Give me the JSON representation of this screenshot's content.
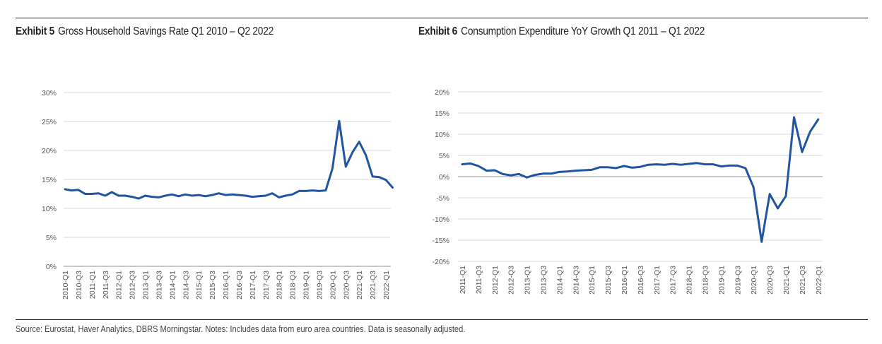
{
  "exhibit5": {
    "label": "Exhibit 5",
    "title": "Gross Household Savings Rate Q1 2010 – Q2 2022"
  },
  "exhibit6": {
    "label": "Exhibit 6",
    "title": "Consumption Expenditure YoY Growth Q1 2011 –  Q1 2022"
  },
  "footer": {
    "text": "Source: Eurostat, Haver Analytics, DBRS Morningstar. Notes: Includes data from euro area countries. Data is seasonally adjusted."
  },
  "colors": {
    "line": "#2155a0",
    "grid": "#d9d9d9",
    "zero_axis": "#a6a6a6"
  },
  "chart_data": [
    {
      "type": "line",
      "title": "Gross Household Savings Rate Q1 2010 – Q2 2022",
      "xlabel": "",
      "ylabel": "",
      "ylim": [
        0,
        30
      ],
      "yticks": [
        "0%",
        "5%",
        "10%",
        "15%",
        "20%",
        "25%",
        "30%"
      ],
      "ytick_values": [
        0,
        5,
        10,
        15,
        20,
        25,
        30
      ],
      "grid": true,
      "xtick_labels": [
        "2010-Q1",
        "2010-Q3",
        "2011-Q1",
        "2011-Q3",
        "2012-Q1",
        "2012-Q3",
        "2013-Q1",
        "2013-Q3",
        "2014-Q1",
        "2014-Q3",
        "2015-Q1",
        "2015-Q3",
        "2016-Q1",
        "2016-Q3",
        "2017-Q1",
        "2017-Q3",
        "2018-Q1",
        "2018-Q3",
        "2019-Q1",
        "2019-Q3",
        "2020-Q1",
        "2020-Q3",
        "2021-Q1",
        "2021-Q3",
        "2022-Q1"
      ],
      "x_start": "2010-Q1",
      "series": [
        {
          "name": "Gross Household Savings Rate",
          "values": [
            13.3,
            13.1,
            13.2,
            12.5,
            12.5,
            12.6,
            12.2,
            12.8,
            12.2,
            12.2,
            12.0,
            11.7,
            12.2,
            12.0,
            11.9,
            12.2,
            12.4,
            12.1,
            12.4,
            12.2,
            12.3,
            12.1,
            12.3,
            12.6,
            12.3,
            12.4,
            12.3,
            12.2,
            12.0,
            12.1,
            12.2,
            12.6,
            11.9,
            12.2,
            12.4,
            13.0,
            13.0,
            13.1,
            13.0,
            13.1,
            16.9,
            25.1,
            17.2,
            19.7,
            21.5,
            19.2,
            15.5,
            15.4,
            14.9,
            13.6
          ]
        }
      ]
    },
    {
      "type": "line",
      "title": "Consumption Expenditure YoY Growth Q1 2011 –  Q1 2022",
      "xlabel": "",
      "ylabel": "",
      "ylim": [
        -20,
        20
      ],
      "yticks": [
        "-20%",
        "-15%",
        "-10%",
        "-5%",
        "0%",
        "5%",
        "10%",
        "15%",
        "20%"
      ],
      "ytick_values": [
        -20,
        -15,
        -10,
        -5,
        0,
        5,
        10,
        15,
        20
      ],
      "grid": true,
      "xtick_labels": [
        "2011-Q1",
        "2011-Q3",
        "2012-Q1",
        "2012-Q3",
        "2013-Q1",
        "2013-Q3",
        "2014-Q1",
        "2014-Q3",
        "2015-Q1",
        "2015-Q3",
        "2016-Q1",
        "2016-Q3",
        "2017-Q1",
        "2017-Q3",
        "2018-Q1",
        "2018-Q3",
        "2019-Q1",
        "2019-Q3",
        "2020-Q1",
        "2020-Q3",
        "2021-Q1",
        "2021-Q3",
        "2022-Q1"
      ],
      "x_start": "2011-Q1",
      "series": [
        {
          "name": "Consumption Expenditure YoY Growth",
          "values": [
            2.9,
            3.1,
            2.5,
            1.4,
            1.5,
            0.6,
            0.3,
            0.6,
            -0.2,
            0.4,
            0.7,
            0.7,
            1.1,
            1.2,
            1.4,
            1.5,
            1.6,
            2.2,
            2.2,
            2.0,
            2.5,
            2.1,
            2.3,
            2.8,
            2.9,
            2.8,
            3.0,
            2.8,
            3.0,
            3.2,
            2.9,
            2.9,
            2.4,
            2.6,
            2.6,
            2.0,
            -2.5,
            -15.4,
            -4.1,
            -7.5,
            -4.6,
            14.0,
            5.8,
            10.6,
            13.5
          ]
        }
      ]
    }
  ]
}
